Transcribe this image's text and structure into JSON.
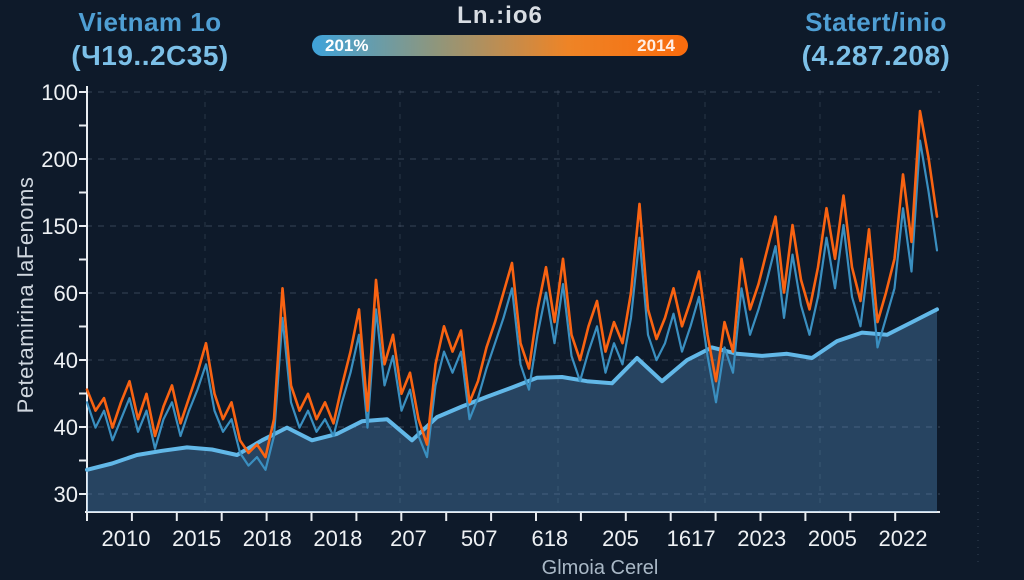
{
  "header": {
    "left_title_line1": "Vietnam 1o",
    "left_title_line2": "(Ч19..2C35)",
    "center_title": "Ln.:io6",
    "right_title_line1": "Statert/inio",
    "right_title_line2": "(4.287.208)",
    "gradient_bar": {
      "left_label": "201%",
      "right_label": "2014",
      "start_color": "#3fa3da",
      "mid_color_1": "#8f967c",
      "mid_color_2": "#ee8426",
      "end_color": "#f96b0d"
    }
  },
  "chart_data": {
    "type": "line",
    "title": "Ln.:io6",
    "ylabel": "Petetamirina laFenoms",
    "xlabel": "",
    "grid": "dashed",
    "legend_position": "none",
    "y_tick_labels": [
      "100",
      "200",
      "150",
      "60",
      "40",
      "40",
      "30"
    ],
    "x_tick_labels": [
      "2010",
      "2015",
      "2018",
      "2018",
      "207",
      "507",
      "618",
      "205",
      "1617",
      "2023",
      "2005",
      "2022"
    ],
    "value_scale": "percent_of_plot_height_0_bottom_100_top",
    "series": [
      {
        "name": "smooth-area-trend",
        "style": "area-line",
        "color": "#62b8e8",
        "fill": "rgba(100,165,225,0.30)",
        "values": [
          10,
          11.5,
          13.5,
          14.5,
          15.3,
          14.8,
          13.5,
          17,
          20,
          17,
          18.5,
          21.5,
          22,
          17,
          22.5,
          25,
          27.3,
          29.5,
          31.8,
          32,
          31,
          30.5,
          36.5,
          31,
          36,
          39,
          37.5,
          37,
          37.5,
          36.5,
          40.5,
          42.5,
          42,
          45,
          48
        ]
      },
      {
        "name": "volatile-secondary",
        "style": "line",
        "color": "#3a8fc0",
        "values": [
          26,
          20,
          24,
          17,
          22,
          27,
          19,
          24,
          15,
          22,
          26,
          18,
          24,
          29,
          35,
          24,
          19,
          22,
          14,
          11,
          13,
          10,
          18,
          46,
          26,
          20,
          24,
          19,
          22,
          18,
          26,
          33,
          42,
          20,
          48,
          30,
          37,
          24,
          29,
          18,
          13,
          30,
          38,
          33,
          38,
          22,
          27,
          34,
          40,
          46,
          53,
          35,
          29,
          42,
          52,
          40,
          54,
          37,
          31,
          38,
          44,
          33,
          40,
          35,
          46,
          65,
          42,
          36,
          40,
          47,
          38,
          44,
          51,
          37,
          26,
          39,
          33,
          53,
          42,
          48,
          55,
          63,
          46,
          61,
          49,
          42,
          51,
          65,
          53,
          68,
          51,
          44,
          60,
          39,
          46,
          53,
          72,
          57,
          88,
          76,
          62
        ]
      },
      {
        "name": "volatile-primary",
        "style": "line",
        "color": "#f96312",
        "values": [
          29,
          24,
          27,
          20,
          26,
          31,
          22,
          28,
          18,
          25,
          30,
          21,
          27,
          33,
          40,
          28,
          22,
          26,
          17,
          14,
          16,
          13,
          22,
          53,
          30,
          24,
          28,
          22,
          26,
          21,
          30,
          38,
          48,
          24,
          55,
          35,
          42,
          28,
          33,
          22,
          16,
          35,
          44,
          38,
          43,
          26,
          31,
          39,
          45,
          52,
          59,
          40,
          34,
          48,
          58,
          45,
          60,
          42,
          36,
          44,
          50,
          38,
          45,
          40,
          52,
          73,
          48,
          41,
          46,
          53,
          44,
          50,
          57,
          42,
          31,
          45,
          38,
          60,
          48,
          54,
          62,
          70,
          52,
          68,
          55,
          48,
          58,
          72,
          60,
          75,
          58,
          50,
          67,
          45,
          52,
          60,
          80,
          64,
          95,
          84,
          70
        ]
      }
    ]
  },
  "footer": {
    "caption": "Glmoia Cerel"
  },
  "colors": {
    "background": "#0e1a2a",
    "axis": "#e8ecf0",
    "grid": "rgba(160,180,200,0.28)",
    "tick_label": "#eef1f4",
    "title_blue": "#4f9fd4",
    "title_blue_light": "#7cc0e8",
    "center_title": "#d8dde3",
    "ylabel_color": "#cfd6de",
    "footer_color": "#a9b8c6"
  }
}
